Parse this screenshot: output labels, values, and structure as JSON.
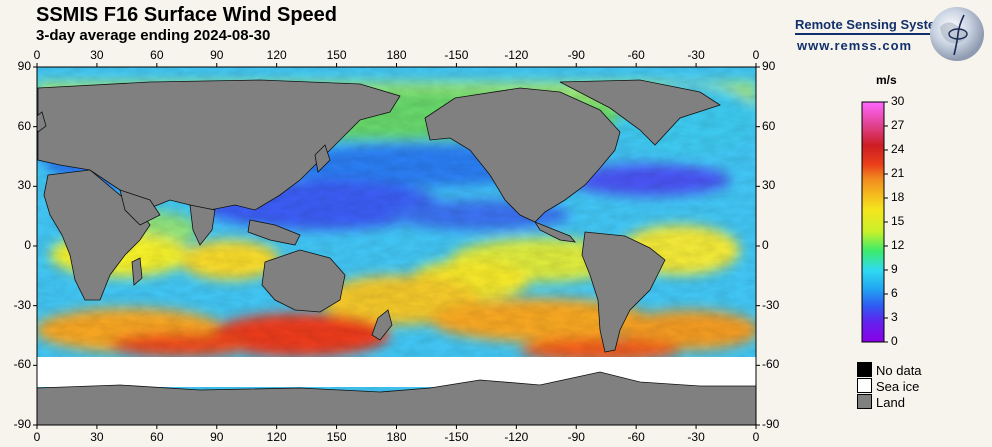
{
  "header": {
    "title": "SSMIS F16 Surface Wind Speed",
    "subtitle": "3-day average ending 2024-08-30"
  },
  "brand": {
    "name": "Remote Sensing Systems",
    "url": "www.remss.com"
  },
  "map": {
    "lon_ticks": [
      "0",
      "30",
      "60",
      "90",
      "120",
      "150",
      "180",
      "-150",
      "-120",
      "-90",
      "-60",
      "-30",
      "0"
    ],
    "lat_ticks": [
      "90",
      "60",
      "30",
      "0",
      "-30",
      "-60",
      "-90"
    ],
    "colors": {
      "land": "#808080",
      "sea_ice": "#ffffff",
      "no_data": "#000000"
    }
  },
  "colorbar": {
    "unit": "m/s",
    "labels": [
      "30",
      "27",
      "24",
      "21",
      "18",
      "15",
      "12",
      "9",
      "6",
      "3",
      "0"
    ],
    "range": [
      0,
      30
    ]
  },
  "legend": {
    "no_data": "No data",
    "sea_ice": "Sea ice",
    "land": "Land"
  }
}
